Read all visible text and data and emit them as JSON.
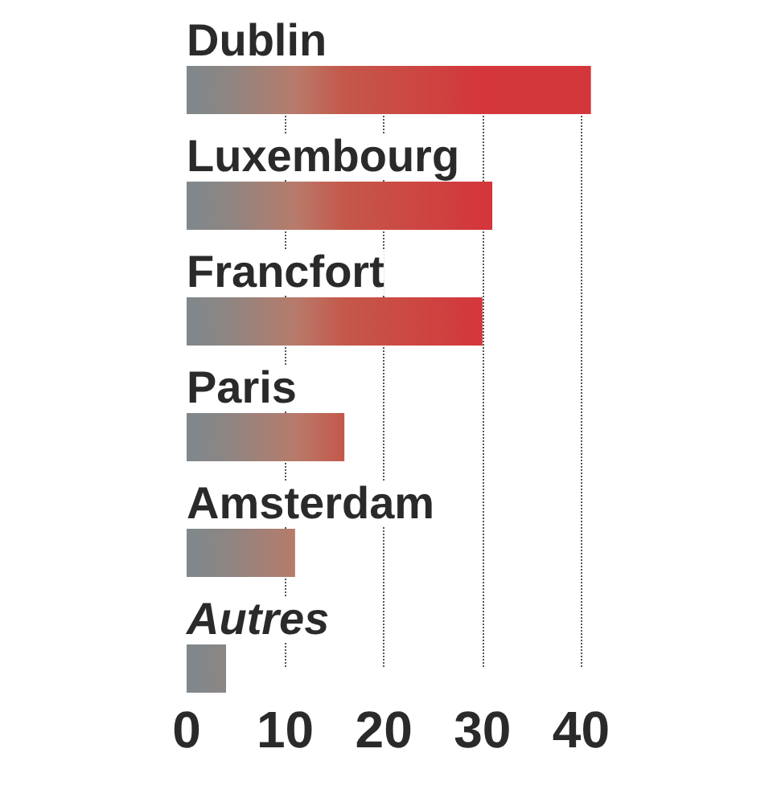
{
  "chart_data": {
    "type": "bar",
    "orientation": "horizontal",
    "categories": [
      "Dublin",
      "Luxembourg",
      "Francfort",
      "Paris",
      "Amsterdam",
      "Autres"
    ],
    "values": [
      41,
      31,
      30,
      16,
      11,
      4
    ],
    "colors": [
      "#d3363b",
      "#d3373c",
      "#d4363b",
      "#c4584a",
      "#b77b6b",
      "#8c8683"
    ],
    "xlim": [
      0,
      41
    ],
    "xticks": [
      0,
      10,
      20,
      30,
      40
    ],
    "grid": "x"
  }
}
